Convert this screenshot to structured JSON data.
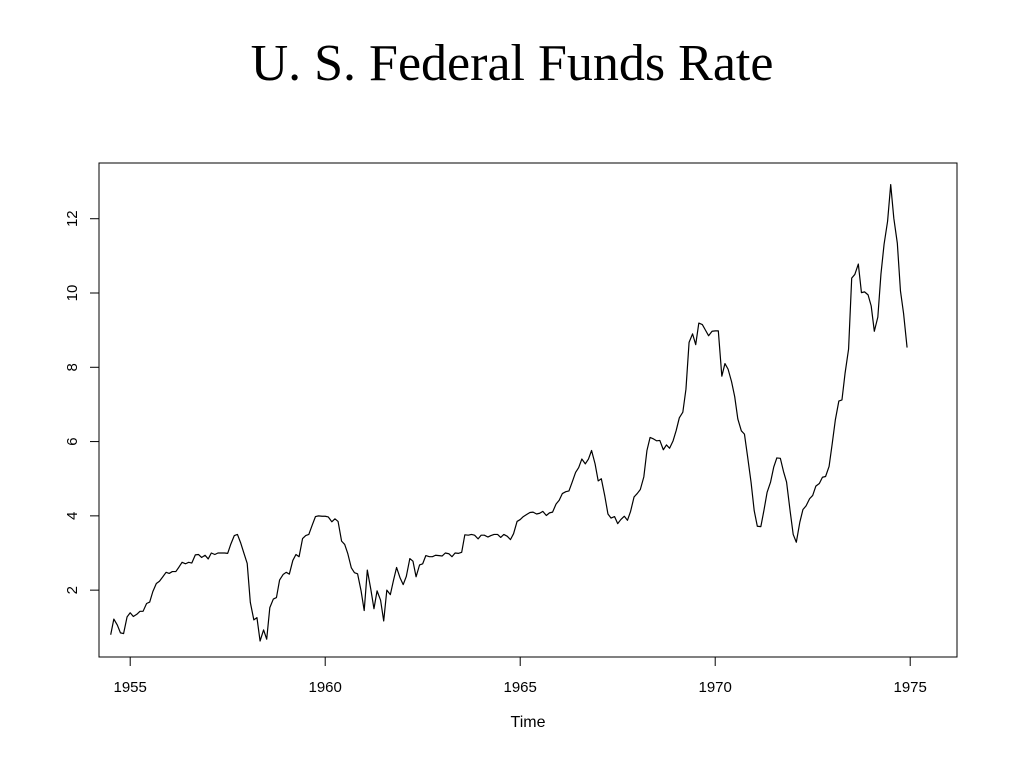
{
  "slide": {
    "title": "U. S. Federal Funds Rate"
  },
  "chart_data": {
    "type": "line",
    "title": "U. S. Federal Funds Rate",
    "xlabel": "Time",
    "ylabel": "",
    "xlim": [
      1954.2,
      1976.2
    ],
    "ylim": [
      0.2,
      13.5
    ],
    "x_ticks": [
      1955,
      1960,
      1965,
      1970,
      1975
    ],
    "y_ticks": [
      2,
      4,
      6,
      8,
      10,
      12
    ],
    "grid": false,
    "legend": "none",
    "line_color": "#000000",
    "series": [
      {
        "name": "",
        "x": [
          1954.5,
          1954.58,
          1954.67,
          1954.75,
          1954.83,
          1954.92,
          1955.0,
          1955.08,
          1955.17,
          1955.25,
          1955.33,
          1955.42,
          1955.5,
          1955.58,
          1955.67,
          1955.75,
          1955.83,
          1955.92,
          1956.0,
          1956.08,
          1956.17,
          1956.25,
          1956.33,
          1956.42,
          1956.5,
          1956.58,
          1956.67,
          1956.75,
          1956.83,
          1956.92,
          1957.0,
          1957.08,
          1957.17,
          1957.25,
          1957.33,
          1957.42,
          1957.5,
          1957.58,
          1957.67,
          1957.75,
          1957.83,
          1957.92,
          1958.0,
          1958.08,
          1958.17,
          1958.25,
          1958.33,
          1958.42,
          1958.5,
          1958.58,
          1958.67,
          1958.75,
          1958.83,
          1958.92,
          1959.0,
          1959.08,
          1959.17,
          1959.25,
          1959.33,
          1959.42,
          1959.5,
          1959.58,
          1959.67,
          1959.75,
          1959.83,
          1959.92,
          1960.0,
          1960.08,
          1960.17,
          1960.25,
          1960.33,
          1960.42,
          1960.5,
          1960.58,
          1960.67,
          1960.75,
          1960.83,
          1960.92,
          1961.0,
          1961.08,
          1961.17,
          1961.25,
          1961.33,
          1961.42,
          1961.5,
          1961.58,
          1961.67,
          1961.75,
          1961.83,
          1961.92,
          1962.0,
          1962.08,
          1962.17,
          1962.25,
          1962.33,
          1962.42,
          1962.5,
          1962.58,
          1962.67,
          1962.75,
          1962.83,
          1962.92,
          1963.0,
          1963.08,
          1963.17,
          1963.25,
          1963.33,
          1963.42,
          1963.5,
          1963.58,
          1963.67,
          1963.75,
          1963.83,
          1963.92,
          1964.0,
          1964.08,
          1964.17,
          1964.25,
          1964.33,
          1964.42,
          1964.5,
          1964.58,
          1964.67,
          1964.75,
          1964.83,
          1964.92,
          1965.0,
          1965.08,
          1965.17,
          1965.25,
          1965.33,
          1965.42,
          1965.5,
          1965.58,
          1965.67,
          1965.75,
          1965.83,
          1965.92,
          1966.0,
          1966.08,
          1966.17,
          1966.25,
          1966.33,
          1966.42,
          1966.5,
          1966.58,
          1966.67,
          1966.75,
          1966.83,
          1966.92,
          1967.0,
          1967.08,
          1967.17,
          1967.25,
          1967.33,
          1967.42,
          1967.5,
          1967.58,
          1967.67,
          1967.75,
          1967.83,
          1967.92,
          1968.0,
          1968.08,
          1968.17,
          1968.25,
          1968.33,
          1968.42,
          1968.5,
          1968.58,
          1968.67,
          1968.75,
          1968.83,
          1968.92,
          1969.0,
          1969.08,
          1969.17,
          1969.25,
          1969.33,
          1969.42,
          1969.5,
          1969.58,
          1969.67,
          1969.75,
          1969.83,
          1969.92,
          1970.0,
          1970.08,
          1970.17,
          1970.25,
          1970.33,
          1970.42,
          1970.5,
          1970.58,
          1970.67,
          1970.75,
          1970.83,
          1970.92,
          1971.0,
          1971.08,
          1971.17,
          1971.25,
          1971.33,
          1971.42,
          1971.5,
          1971.58,
          1971.67,
          1971.75,
          1971.83,
          1971.92,
          1972.0,
          1972.08,
          1972.17,
          1972.25,
          1972.33,
          1972.42,
          1972.5,
          1972.58,
          1972.67,
          1972.75,
          1972.83,
          1972.92,
          1973.0,
          1973.08,
          1973.17,
          1973.25,
          1973.33,
          1973.42,
          1973.5,
          1973.58,
          1973.67,
          1973.75,
          1973.83,
          1973.92,
          1974.0,
          1974.08,
          1974.17,
          1974.25,
          1974.33,
          1974.42,
          1974.5,
          1974.58,
          1974.67,
          1974.75,
          1974.83,
          1974.92
        ],
        "values": [
          0.8,
          1.22,
          1.06,
          0.85,
          0.83,
          1.28,
          1.39,
          1.29,
          1.35,
          1.43,
          1.43,
          1.64,
          1.68,
          1.96,
          2.18,
          2.24,
          2.35,
          2.48,
          2.45,
          2.5,
          2.5,
          2.62,
          2.75,
          2.71,
          2.75,
          2.73,
          2.95,
          2.96,
          2.88,
          2.94,
          2.84,
          3.0,
          2.96,
          3.0,
          3.0,
          3.0,
          2.99,
          3.24,
          3.47,
          3.5,
          3.28,
          2.98,
          2.72,
          1.67,
          1.2,
          1.26,
          0.63,
          0.93,
          0.68,
          1.53,
          1.76,
          1.8,
          2.27,
          2.42,
          2.48,
          2.43,
          2.8,
          2.96,
          2.9,
          3.39,
          3.47,
          3.5,
          3.76,
          3.98,
          4.0,
          3.99,
          3.99,
          3.97,
          3.84,
          3.92,
          3.85,
          3.32,
          3.23,
          2.98,
          2.6,
          2.47,
          2.44,
          1.98,
          1.45,
          2.54,
          2.02,
          1.5,
          1.98,
          1.73,
          1.17,
          2.0,
          1.88,
          2.26,
          2.61,
          2.33,
          2.15,
          2.37,
          2.85,
          2.78,
          2.36,
          2.68,
          2.71,
          2.93,
          2.9,
          2.9,
          2.94,
          2.93,
          2.92,
          3.0,
          2.98,
          2.9,
          3.0,
          2.99,
          3.02,
          3.49,
          3.48,
          3.5,
          3.48,
          3.38,
          3.48,
          3.48,
          3.43,
          3.47,
          3.5,
          3.5,
          3.42,
          3.5,
          3.45,
          3.36,
          3.52,
          3.85,
          3.9,
          3.98,
          4.04,
          4.09,
          4.1,
          4.05,
          4.07,
          4.12,
          4.01,
          4.08,
          4.1,
          4.32,
          4.42,
          4.6,
          4.65,
          4.67,
          4.9,
          5.17,
          5.3,
          5.53,
          5.4,
          5.53,
          5.76,
          5.4,
          4.94,
          5.0,
          4.53,
          4.05,
          3.94,
          3.98,
          3.79,
          3.9,
          3.99,
          3.88,
          4.12,
          4.51,
          4.6,
          4.71,
          5.05,
          5.76,
          6.11,
          6.07,
          6.02,
          6.03,
          5.78,
          5.91,
          5.82,
          6.02,
          6.3,
          6.64,
          6.79,
          7.41,
          8.67,
          8.9,
          8.61,
          9.19,
          9.15,
          9.0,
          8.85,
          8.97,
          8.98,
          8.98,
          7.76,
          8.1,
          7.95,
          7.61,
          7.21,
          6.61,
          6.29,
          6.2,
          5.6,
          4.9,
          4.14,
          3.72,
          3.71,
          4.15,
          4.63,
          4.91,
          5.31,
          5.56,
          5.55,
          5.2,
          4.91,
          4.14,
          3.5,
          3.29,
          3.83,
          4.17,
          4.27,
          4.46,
          4.55,
          4.8,
          4.87,
          5.04,
          5.06,
          5.33,
          5.94,
          6.58,
          7.09,
          7.12,
          7.84,
          8.49,
          10.4,
          10.5,
          10.78,
          10.01,
          10.03,
          9.95,
          9.65,
          8.97,
          9.35,
          10.51,
          11.31,
          11.93,
          12.92,
          12.01,
          11.34,
          10.06,
          9.45,
          8.53
        ]
      }
    ]
  }
}
